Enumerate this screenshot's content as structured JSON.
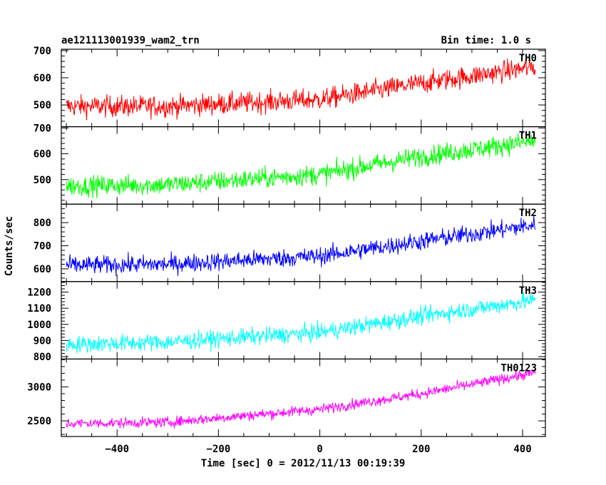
{
  "chart_data": {
    "type": "line",
    "title": "ae121113001939_wam2_trn",
    "bin_time_label": "Bin time: 1.0 s",
    "xlabel": "Time [sec] 0 = 2012/11/13 00:19:39",
    "ylabel": "Counts/sec",
    "xlim": [
      -510,
      445
    ],
    "x_range_data": [
      -500,
      425
    ],
    "xticks_major": [
      -400,
      -200,
      0,
      200,
      400
    ],
    "xtick_labels": [
      "−400",
      "−200",
      "0",
      "200",
      "400"
    ],
    "panels": [
      {
        "name": "TH0",
        "color": "#ff0000",
        "ylim": [
          420,
          705
        ],
        "yticks": [
          500,
          600,
          700
        ],
        "ytick_labels": [
          "500",
          "600",
          "700"
        ],
        "trend": [
          [
            -500,
            495
          ],
          [
            -300,
            495
          ],
          [
            0,
            520
          ],
          [
            200,
            580
          ],
          [
            425,
            640
          ]
        ],
        "noise": 28
      },
      {
        "name": "TH1",
        "color": "#00ff00",
        "ylim": [
          405,
          705
        ],
        "yticks": [
          500,
          600,
          700
        ],
        "ytick_labels": [
          "500",
          "600",
          "700"
        ],
        "trend": [
          [
            -500,
            475
          ],
          [
            -300,
            480
          ],
          [
            0,
            520
          ],
          [
            200,
            590
          ],
          [
            425,
            650
          ]
        ],
        "noise": 28
      },
      {
        "name": "TH2",
        "color": "#0000ff",
        "ylim": [
          545,
          880
        ],
        "yticks": [
          600,
          700,
          800
        ],
        "ytick_labels": [
          "600",
          "700",
          "800"
        ],
        "trend": [
          [
            -500,
            615
          ],
          [
            -300,
            620
          ],
          [
            0,
            655
          ],
          [
            200,
            720
          ],
          [
            425,
            790
          ]
        ],
        "noise": 28
      },
      {
        "name": "TH3",
        "color": "#00ffff",
        "ylim": [
          785,
          1265
        ],
        "yticks": [
          800,
          900,
          1000,
          1100,
          1200
        ],
        "ytick_labels": [
          "800",
          "900",
          "1000",
          "1100",
          "1200"
        ],
        "trend": [
          [
            -500,
            875
          ],
          [
            -300,
            890
          ],
          [
            0,
            950
          ],
          [
            200,
            1050
          ],
          [
            425,
            1150
          ]
        ],
        "noise": 38
      },
      {
        "name": "TH0123",
        "color": "#ff00ff",
        "ylim": [
          2270,
          3410
        ],
        "yticks": [
          2500,
          3000
        ],
        "ytick_labels": [
          "2500",
          "3000"
        ],
        "trend": [
          [
            -500,
            2460
          ],
          [
            -300,
            2480
          ],
          [
            0,
            2670
          ],
          [
            200,
            2900
          ],
          [
            425,
            3210
          ]
        ],
        "noise": 55
      }
    ]
  }
}
